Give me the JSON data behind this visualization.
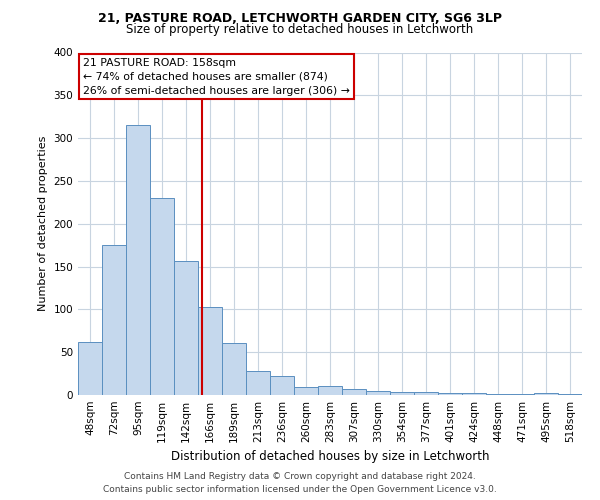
{
  "title1": "21, PASTURE ROAD, LETCHWORTH GARDEN CITY, SG6 3LP",
  "title2": "Size of property relative to detached houses in Letchworth",
  "xlabel": "Distribution of detached houses by size in Letchworth",
  "ylabel": "Number of detached properties",
  "categories": [
    "48sqm",
    "72sqm",
    "95sqm",
    "119sqm",
    "142sqm",
    "166sqm",
    "189sqm",
    "213sqm",
    "236sqm",
    "260sqm",
    "283sqm",
    "307sqm",
    "330sqm",
    "354sqm",
    "377sqm",
    "401sqm",
    "424sqm",
    "448sqm",
    "471sqm",
    "495sqm",
    "518sqm"
  ],
  "values": [
    62,
    175,
    315,
    230,
    157,
    103,
    61,
    28,
    22,
    9,
    10,
    7,
    5,
    4,
    3,
    2,
    2,
    1,
    1,
    2,
    1
  ],
  "bar_color": "#c5d8ed",
  "bar_edge_color": "#5a8fc0",
  "vline_color": "#cc0000",
  "annotation_line1": "21 PASTURE ROAD: 158sqm",
  "annotation_line2": "← 74% of detached houses are smaller (874)",
  "annotation_line3": "26% of semi-detached houses are larger (306) →",
  "annotation_box_color": "#ffffff",
  "annotation_box_edge": "#cc0000",
  "footer1": "Contains HM Land Registry data © Crown copyright and database right 2024.",
  "footer2": "Contains public sector information licensed under the Open Government Licence v3.0.",
  "ylim": [
    0,
    400
  ],
  "yticks": [
    0,
    50,
    100,
    150,
    200,
    250,
    300,
    350,
    400
  ],
  "bg_color": "#ffffff",
  "grid_color": "#c8d4e0",
  "title1_fontsize": 9,
  "title2_fontsize": 8.5,
  "ylabel_fontsize": 8,
  "xlabel_fontsize": 8.5,
  "tick_fontsize": 7.5,
  "ann_fontsize": 7.8,
  "footer_fontsize": 6.5
}
